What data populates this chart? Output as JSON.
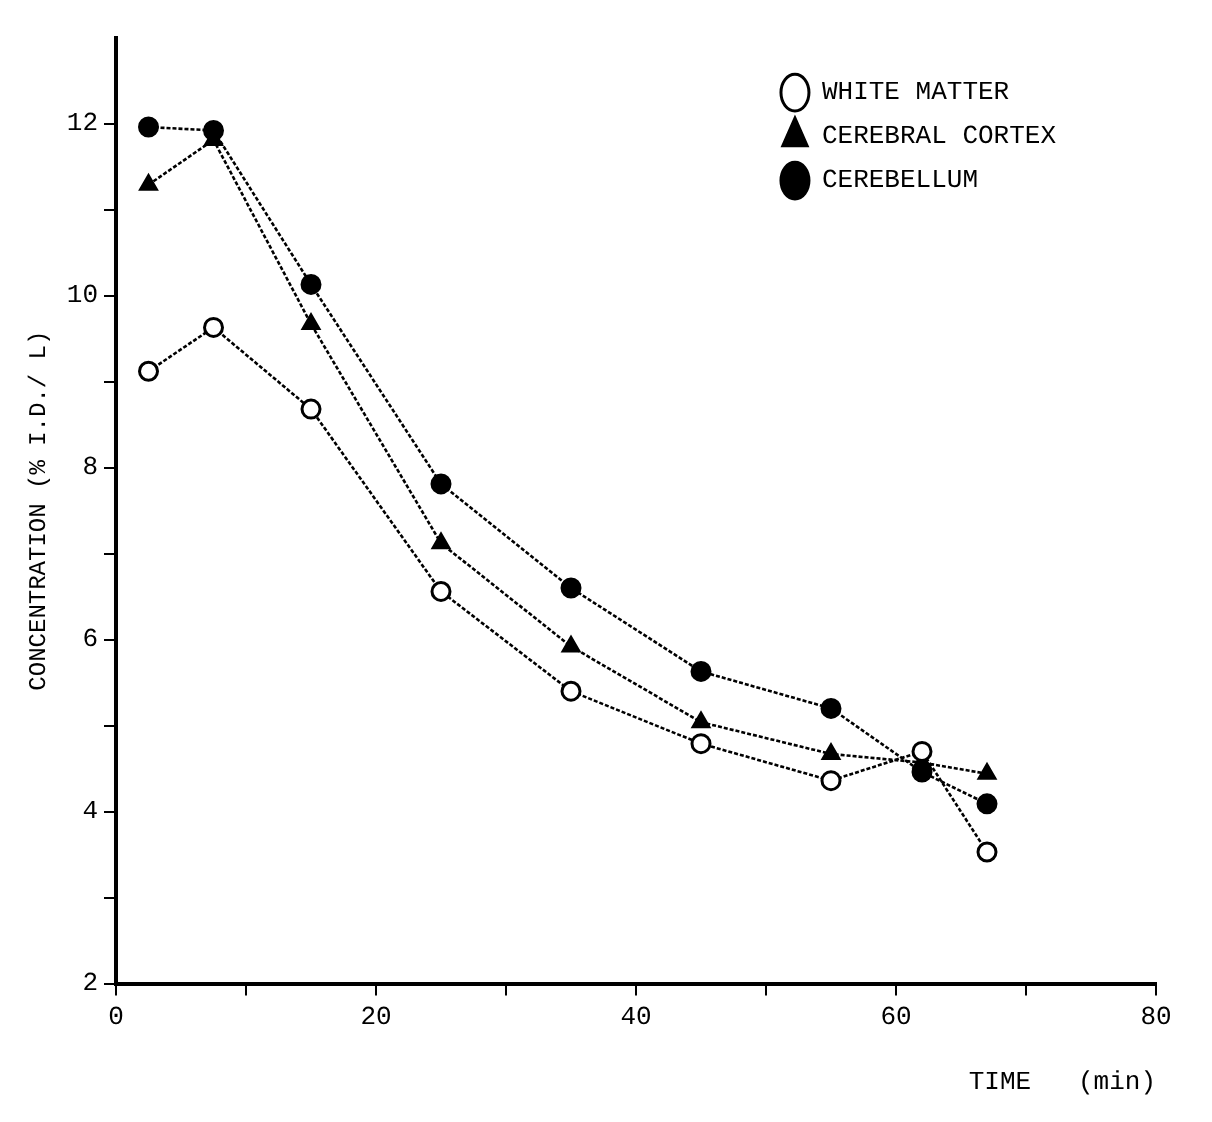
{
  "chart_data": {
    "type": "line",
    "xlabel": "TIME   (min)",
    "ylabel": "CONCENTRATION (% I.D./ L)",
    "x": [
      2.5,
      7.5,
      15,
      25,
      35,
      45,
      55,
      62,
      67
    ],
    "series": [
      {
        "name": "WHITE MATTER",
        "color": "#000000",
        "marker": "circle",
        "values": [
          9.12,
          9.63,
          8.68,
          6.56,
          5.4,
          4.79,
          4.36,
          4.7,
          3.53
        ]
      },
      {
        "name": "CEREBRAL CORTEX",
        "color": "#000000",
        "marker": "triangle",
        "values": [
          11.29,
          11.81,
          9.67,
          7.12,
          5.92,
          5.04,
          4.67,
          4.57,
          4.44
        ]
      },
      {
        "name": "CEREBELLUM",
        "color": "#000000",
        "marker": "circle",
        "values": [
          11.96,
          11.92,
          10.13,
          7.81,
          6.6,
          5.63,
          5.2,
          4.46,
          4.09
        ]
      }
    ],
    "xlim": [
      0,
      80
    ],
    "xticks": [
      0,
      {
        "value": 10,
        "label": null
      },
      20,
      {
        "value": 30,
        "label": null
      },
      40,
      {
        "value": 50,
        "label": null
      },
      60,
      {
        "value": 70,
        "label": null
      },
      80
    ],
    "ylim": [
      2,
      13
    ],
    "yticks": [
      2,
      {
        "value": 3,
        "label": null
      },
      4,
      {
        "value": 5,
        "label": null
      },
      6,
      {
        "value": 7,
        "label": null
      },
      8,
      {
        "value": 9,
        "label": null
      },
      10,
      {
        "value": 11,
        "label": null
      },
      12
    ],
    "legend": "top right",
    "line_style": "dotted"
  }
}
